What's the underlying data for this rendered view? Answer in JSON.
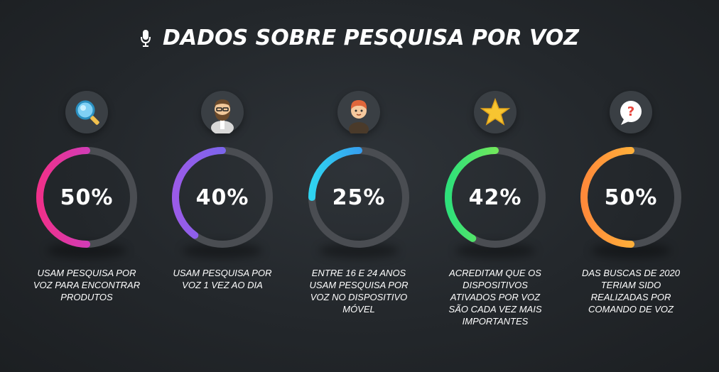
{
  "title": "DADOS SOBRE PESQUISA POR VOZ",
  "colors": {
    "track": "#4a4d52",
    "background": "#25292d"
  },
  "chart_data": {
    "type": "donut",
    "items": [
      {
        "percent_label": "50%",
        "value": 50,
        "label": "USAM PESQUISA POR VOZ PARA ENCONTRAR PRODUTOS",
        "icon": "magnifier-icon",
        "gradient": [
          "#f0308a",
          "#b548e0"
        ]
      },
      {
        "percent_label": "40%",
        "value": 40,
        "label": "USAM PESQUISA POR VOZ 1 VEZ AO DIA",
        "icon": "bearded-man-icon",
        "gradient": [
          "#9a5be8",
          "#5f6ef0"
        ]
      },
      {
        "percent_label": "25%",
        "value": 25,
        "label": "ENTRE 16 E 24 ANOS USAM PESQUISA POR VOZ NO DISPOSITIVO MÓVEL",
        "icon": "young-man-icon",
        "gradient": [
          "#2fd4f0",
          "#3d6ef0"
        ]
      },
      {
        "percent_label": "42%",
        "value": 42,
        "label": "ACREDITAM QUE OS DISPOSITIVOS ATIVADOS POR VOZ SÃO CADA VEZ MAIS IMPORTANTES",
        "icon": "star-icon",
        "gradient": [
          "#2ee07a",
          "#b0f040"
        ]
      },
      {
        "percent_label": "50%",
        "value": 50,
        "label": "DAS BUSCAS DE 2020 TERIAM SIDO REALIZADAS POR COMANDO DE VOZ",
        "icon": "question-bubble-icon",
        "gradient": [
          "#ff8a3a",
          "#ffd23a"
        ]
      }
    ]
  }
}
